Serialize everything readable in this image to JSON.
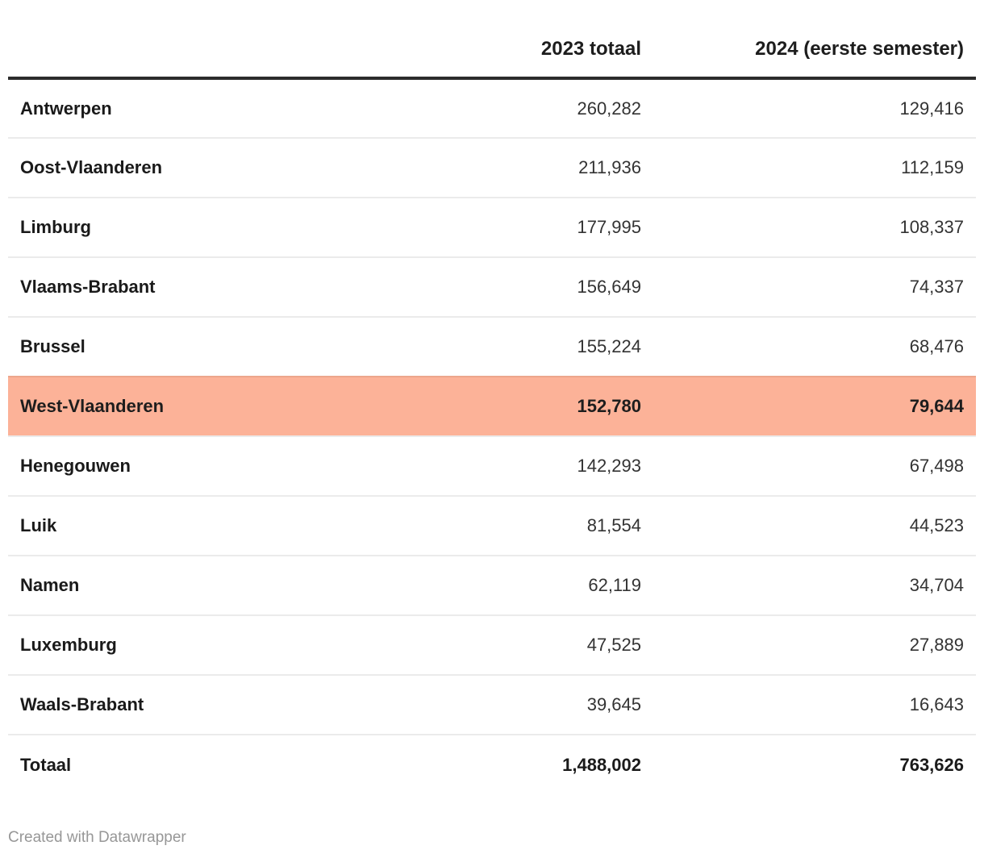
{
  "chart_data": {
    "type": "table",
    "title": "",
    "columns": {
      "label": "",
      "col2023": "2023 totaal",
      "col2024": "2024 (eerste semester)"
    },
    "highlight_color": "#fcb298",
    "highlighted_row": "West-Vlaanderen",
    "rows": [
      {
        "name": "Antwerpen",
        "y2023": "260,282",
        "y2024": "129,416"
      },
      {
        "name": "Oost-Vlaanderen",
        "y2023": "211,936",
        "y2024": "112,159"
      },
      {
        "name": "Limburg",
        "y2023": "177,995",
        "y2024": "108,337"
      },
      {
        "name": "Vlaams-Brabant",
        "y2023": "156,649",
        "y2024": "74,337"
      },
      {
        "name": "Brussel",
        "y2023": "155,224",
        "y2024": "68,476"
      },
      {
        "name": "West-Vlaanderen",
        "y2023": "152,780",
        "y2024": "79,644",
        "highlighted": true
      },
      {
        "name": "Henegouwen",
        "y2023": "142,293",
        "y2024": "67,498"
      },
      {
        "name": "Luik",
        "y2023": "81,554",
        "y2024": "44,523"
      },
      {
        "name": "Namen",
        "y2023": "62,119",
        "y2024": "34,704"
      },
      {
        "name": "Luxemburg",
        "y2023": "47,525",
        "y2024": "27,889"
      },
      {
        "name": "Waals-Brabant",
        "y2023": "39,645",
        "y2024": "16,643"
      },
      {
        "name": "Totaal",
        "y2023": "1,488,002",
        "y2024": "763,626",
        "is_total": true
      }
    ]
  },
  "footer": {
    "credit": "Created with Datawrapper"
  }
}
